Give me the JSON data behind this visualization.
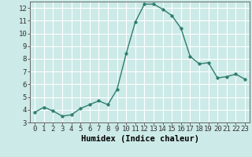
{
  "x": [
    0,
    1,
    2,
    3,
    4,
    5,
    6,
    7,
    8,
    9,
    10,
    11,
    12,
    13,
    14,
    15,
    16,
    17,
    18,
    19,
    20,
    21,
    22,
    23
  ],
  "y": [
    3.8,
    4.2,
    3.9,
    3.5,
    3.6,
    4.1,
    4.4,
    4.7,
    4.4,
    5.6,
    8.4,
    10.9,
    12.3,
    12.3,
    11.9,
    11.4,
    10.4,
    8.2,
    7.6,
    7.7,
    6.5,
    6.6,
    6.8,
    6.4
  ],
  "line_color": "#2e7d6e",
  "marker_color": "#2e7d6e",
  "bg_color": "#cceae7",
  "grid_color": "#ffffff",
  "xlabel": "Humidex (Indice chaleur)",
  "ylim": [
    3,
    12.5
  ],
  "xlim": [
    -0.5,
    23.5
  ],
  "yticks": [
    3,
    4,
    5,
    6,
    7,
    8,
    9,
    10,
    11,
    12
  ],
  "xticks": [
    0,
    1,
    2,
    3,
    4,
    5,
    6,
    7,
    8,
    9,
    10,
    11,
    12,
    13,
    14,
    15,
    16,
    17,
    18,
    19,
    20,
    21,
    22,
    23
  ],
  "tick_fontsize": 6.5,
  "xlabel_fontsize": 7.5,
  "marker_size": 2.5,
  "line_width": 1.0
}
